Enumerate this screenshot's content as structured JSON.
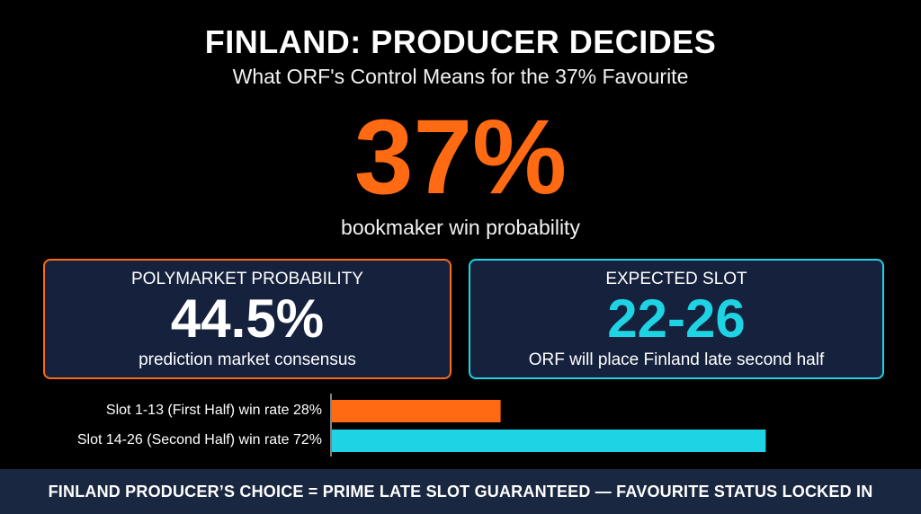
{
  "header": {
    "title": "FINLAND: PRODUCER DECIDES",
    "subtitle": "What ORF's Control Means for the 37% Favourite"
  },
  "hero": {
    "value": "37%",
    "caption": "bookmaker win probability"
  },
  "cards": [
    {
      "label": "POLYMARKET PROBABILITY",
      "value": "44.5%",
      "caption": "prediction market consensus"
    },
    {
      "label": "EXPECTED SLOT",
      "value": "22-26",
      "caption": "ORF will place Finland late second half"
    }
  ],
  "chart_data": {
    "type": "bar",
    "orientation": "horizontal",
    "categories": [
      "Slot 1-13 (First Half) win rate 28%",
      "Slot 14-26 (Second Half) win rate 72%"
    ],
    "values": [
      28,
      72
    ],
    "xlim": [
      0,
      100
    ],
    "grid": false,
    "title": "",
    "xlabel": "",
    "ylabel": ""
  },
  "footer": {
    "banner": "FINLAND PRODUCER’S CHOICE = PRIME LATE SLOT GUARANTEED — FAVOURITE STATUS LOCKED IN"
  },
  "colors": {
    "orange": "#ff6a13",
    "cyan": "#1ed3e3",
    "card_bg": "#16223d",
    "banner_bg": "#1a2740"
  }
}
